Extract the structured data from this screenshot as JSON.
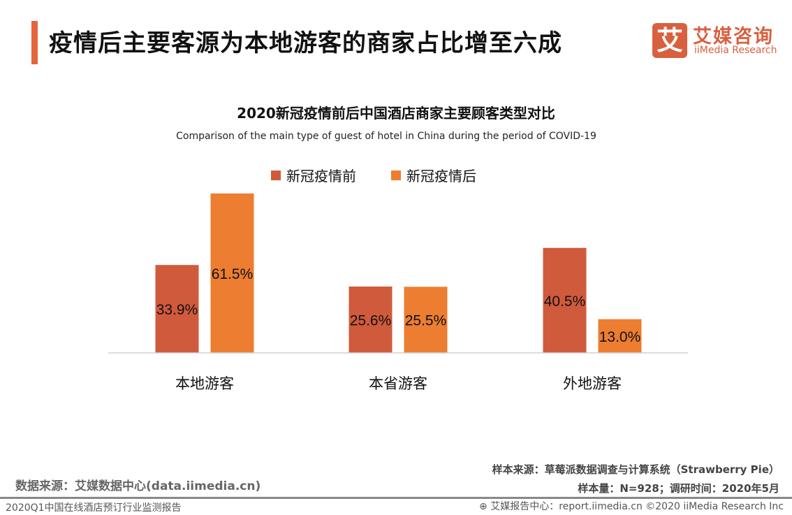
{
  "header": {
    "title": "疫情后主要客源为本地游客的商家占比增至六成",
    "logo": {
      "glyph": "艾",
      "cn": "艾媒咨询",
      "en": "iiMedia Research"
    }
  },
  "chart_data": {
    "type": "bar",
    "title": "2020新冠疫情前后中国酒店商家主要顾客类型对比",
    "subtitle": "Comparison of the main type of guest of hotel in China during the period of COVID-19",
    "categories": [
      "本地游客",
      "本省游客",
      "外地游客"
    ],
    "series": [
      {
        "name": "新冠疫情前",
        "values": [
          33.9,
          25.6,
          40.5
        ],
        "labels": [
          "33.9%",
          "25.6%",
          "40.5%"
        ],
        "color": "#d05a3c"
      },
      {
        "name": "新冠疫情后",
        "values": [
          61.5,
          25.5,
          13.0
        ],
        "labels": [
          "61.5%",
          "25.5%",
          "13.0%"
        ],
        "color": "#ed7d31"
      }
    ],
    "legend_position": "top",
    "grid": false,
    "unit": "%"
  },
  "footer": {
    "source": "数据来源：艾媒数据中心(data.iimedia.cn)",
    "sample_source": "样本来源：草莓派数据调查与计算系统（Strawberry Pie）",
    "sample_info": "样本量：N=928；调研时间：2020年5月",
    "report_name": "2020Q1中国在线酒店预订行业监测报告",
    "report_center": "艾媒报告中心：report.iimedia.cn   ©2020  iiMedia Research  Inc"
  }
}
